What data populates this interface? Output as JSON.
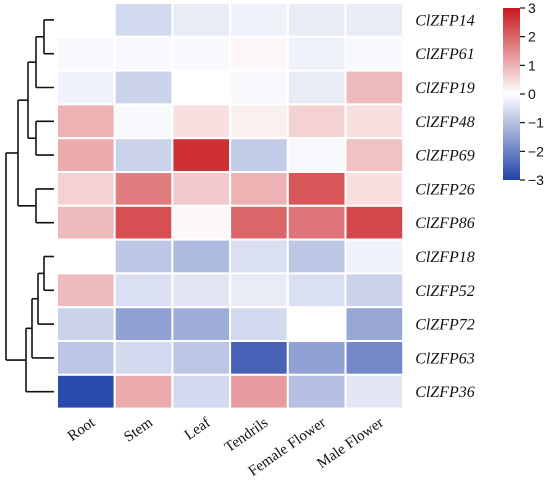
{
  "chart_data": {
    "type": "heatmap",
    "columns": [
      "Root",
      "Stem",
      "Leaf",
      "Tendrils",
      "Female Flower",
      "Male Flower"
    ],
    "rows": [
      "ClZFP14",
      "ClZFP61",
      "ClZFP19",
      "ClZFP48",
      "ClZFP69",
      "ClZFP26",
      "ClZFP86",
      "ClZFP18",
      "ClZFP52",
      "ClZFP72",
      "ClZFP63",
      "ClZFP36"
    ],
    "values": [
      [
        0.0,
        -0.6,
        -0.3,
        -0.2,
        -0.3,
        -0.3
      ],
      [
        -0.1,
        -0.1,
        -0.1,
        0.1,
        -0.2,
        -0.1
      ],
      [
        -0.2,
        -0.7,
        0.0,
        -0.1,
        -0.3,
        0.9
      ],
      [
        1.0,
        -0.1,
        0.4,
        0.2,
        0.6,
        0.4
      ],
      [
        1.1,
        -0.7,
        2.7,
        -0.8,
        -0.1,
        0.8
      ],
      [
        0.6,
        1.7,
        0.7,
        1.0,
        2.2,
        0.4
      ],
      [
        0.9,
        2.3,
        0.1,
        2.0,
        1.8,
        2.4
      ],
      [
        0.0,
        -0.9,
        -1.1,
        -0.5,
        -0.9,
        -0.2
      ],
      [
        0.9,
        -0.5,
        -0.4,
        -0.3,
        -0.5,
        -0.7
      ],
      [
        -0.7,
        -1.5,
        -1.3,
        -0.6,
        0.0,
        -1.4
      ],
      [
        -0.9,
        -0.6,
        -0.9,
        -2.5,
        -1.5,
        -1.9
      ],
      [
        -2.9,
        1.1,
        -0.6,
        1.3,
        -1.0,
        -0.4
      ]
    ],
    "colorbar": {
      "min": -3,
      "max": 3,
      "ticks": [
        "3",
        "2",
        "1",
        "0",
        "−1",
        "−2",
        "−3"
      ]
    },
    "colors": {
      "low": "#2243a8",
      "mid": "#ffffff",
      "high": "#c8191e"
    }
  }
}
